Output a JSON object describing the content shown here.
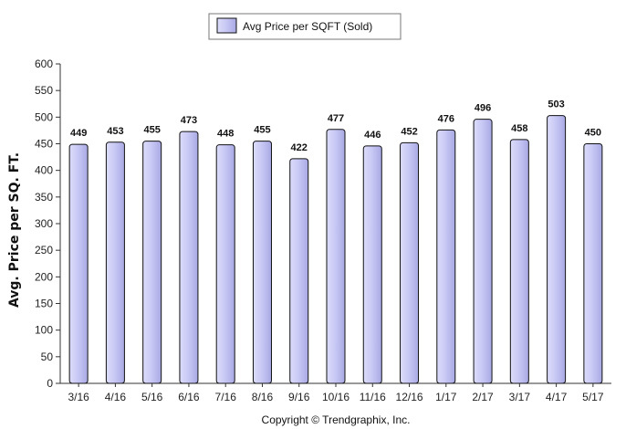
{
  "chart_data": {
    "type": "bar",
    "ylabel": "Avg. Price per SQ. FT.",
    "ylim": [
      0,
      600
    ],
    "y_tick_step": 50,
    "grid": false,
    "legend_position": "top-center",
    "categories": [
      "3/16",
      "4/16",
      "5/16",
      "6/16",
      "7/16",
      "8/16",
      "9/16",
      "10/16",
      "11/16",
      "12/16",
      "1/17",
      "2/17",
      "3/17",
      "4/17",
      "5/17"
    ],
    "series": [
      {
        "name": "Avg Price per SQFT (Sold)",
        "color": "#c8c8f4",
        "values": [
          449,
          453,
          455,
          473,
          448,
          455,
          422,
          477,
          446,
          452,
          476,
          496,
          458,
          503,
          450
        ]
      }
    ]
  },
  "footer": {
    "copyright": "Copyright © Trendgraphix, Inc."
  }
}
